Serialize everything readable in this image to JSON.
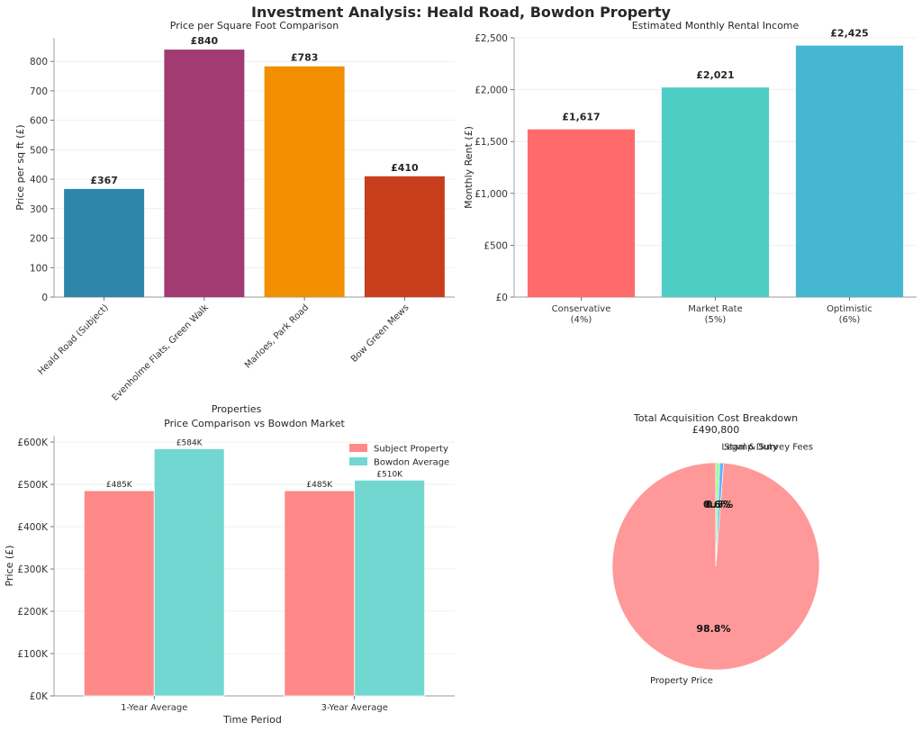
{
  "figure": {
    "title": "Investment Analysis: Heald Road, Bowdon Property"
  },
  "chart_data": [
    {
      "type": "bar",
      "title": "Price per Square Foot Comparison",
      "xlabel": "Properties",
      "ylabel": "Price per sq ft (£)",
      "categories": [
        "Heald Road (Subject)",
        "Evenholme Flats, Green Walk",
        "Marloes, Park Road",
        "Bow Green Mews"
      ],
      "values": [
        367,
        840,
        783,
        410
      ],
      "data_labels": [
        "£367",
        "£840",
        "£783",
        "£410"
      ],
      "colors": [
        "#2E86AB",
        "#A23B72",
        "#F18F01",
        "#C73E1D"
      ],
      "ylim": [
        0,
        880
      ],
      "yticks": [
        0,
        100,
        200,
        300,
        400,
        500,
        600,
        700,
        800
      ],
      "ytick_labels": [
        "0",
        "100",
        "200",
        "300",
        "400",
        "500",
        "600",
        "700",
        "800"
      ],
      "grid": true
    },
    {
      "type": "bar",
      "title": "Estimated Monthly Rental Income",
      "xlabel": "",
      "ylabel": "Monthly Rent (£)",
      "categories": [
        [
          "Conservative",
          "(4%)"
        ],
        [
          "Market Rate",
          "(5%)"
        ],
        [
          "Optimistic",
          "(6%)"
        ]
      ],
      "values": [
        1617,
        2021,
        2425
      ],
      "data_labels": [
        "£1,617",
        "£2,021",
        "£2,425"
      ],
      "colors": [
        "#FF6B6B",
        "#4ECDC4",
        "#45B7D1"
      ],
      "ylim": [
        0,
        2500
      ],
      "yticks": [
        0,
        500,
        1000,
        1500,
        2000,
        2500
      ],
      "ytick_labels": [
        "£0",
        "£500",
        "£1,000",
        "£1,500",
        "£2,000",
        "£2,500"
      ],
      "grid": true
    },
    {
      "type": "bar",
      "title": "Price Comparison vs Bowdon Market",
      "xlabel": "Time Period",
      "ylabel": "Price (£)",
      "categories": [
        "1-Year Average",
        "3-Year Average"
      ],
      "series": [
        {
          "name": "Subject Property",
          "values": [
            485000,
            485000
          ],
          "data_labels": [
            "£485K",
            "£485K"
          ],
          "color": "#FF6B6B"
        },
        {
          "name": "Bowdon Average",
          "values": [
            584000,
            510000
          ],
          "data_labels": [
            "£584K",
            "£510K"
          ],
          "color": "#4ECDC4"
        }
      ],
      "ylim": [
        0,
        615000
      ],
      "yticks": [
        0,
        100000,
        200000,
        300000,
        400000,
        500000,
        600000
      ],
      "ytick_labels": [
        "£0K",
        "£100K",
        "£200K",
        "£300K",
        "£400K",
        "£500K",
        "£600K"
      ],
      "legend": "top-right",
      "grid": true
    },
    {
      "type": "pie",
      "title": "Total Acquisition Cost Breakdown",
      "subtitle": "£490,800",
      "labels": [
        "Property Price",
        "Stamp Duty",
        "Legal & Survey Fees"
      ],
      "values": [
        98.8,
        0.6,
        0.6
      ],
      "pct_labels": [
        "98.8%",
        "0.6%",
        "0.6%"
      ],
      "colors": [
        "#FF9999",
        "#66B3FF",
        "#99FF99"
      ]
    }
  ]
}
